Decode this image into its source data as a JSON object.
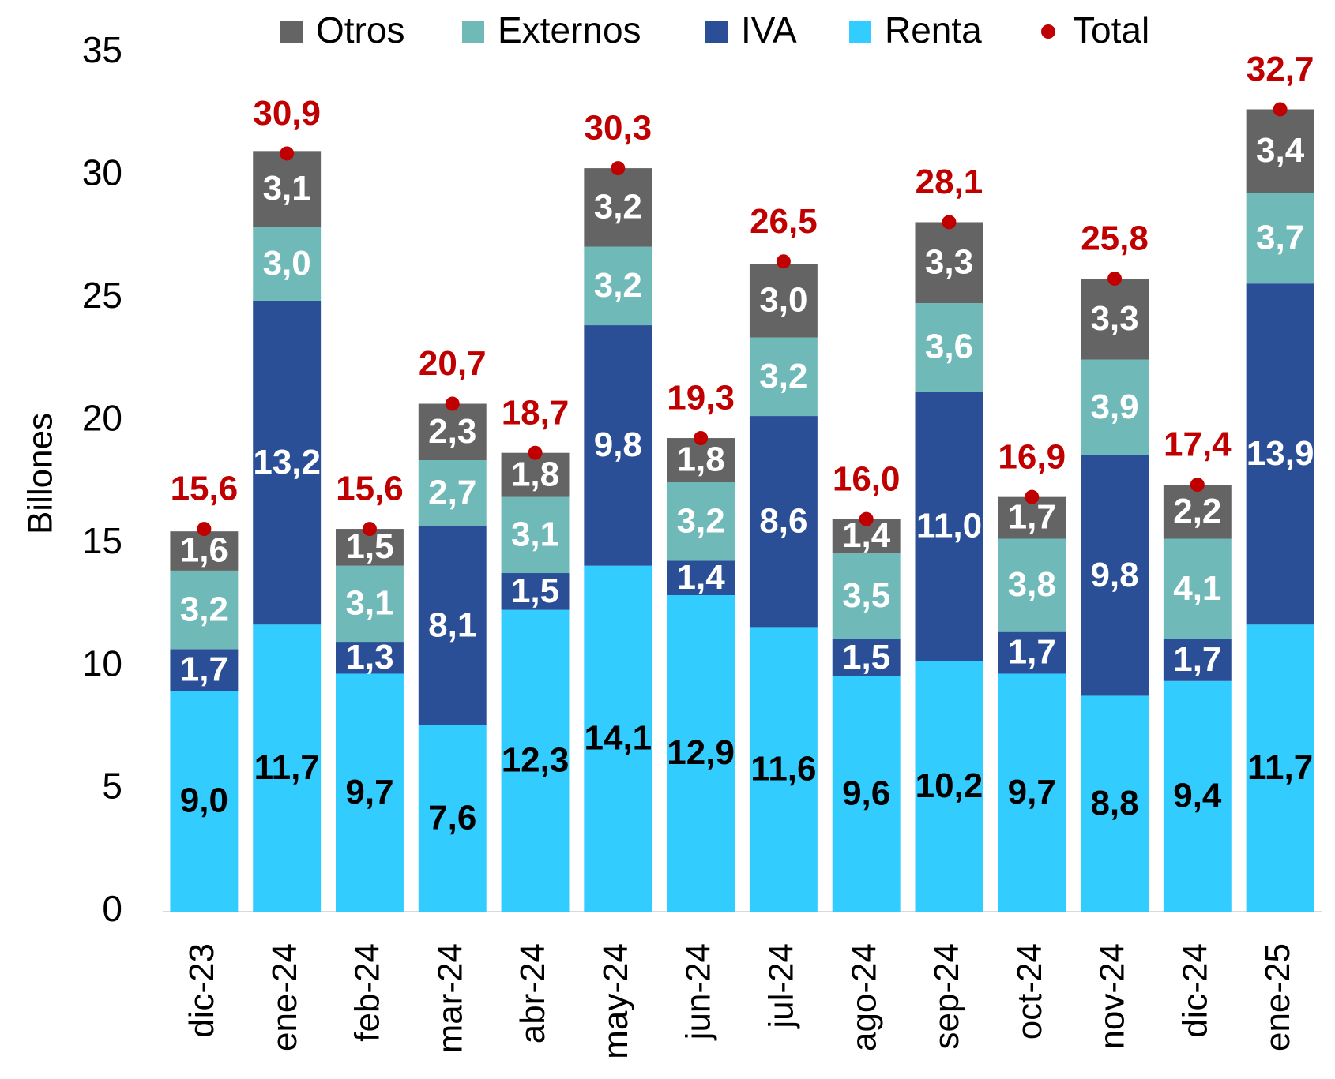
{
  "chart_data": {
    "type": "bar",
    "stacked": true,
    "y_label": "Billones",
    "categories": [
      "dic-23",
      "ene-24",
      "feb-24",
      "mar-24",
      "abr-24",
      "may-24",
      "jun-24",
      "jul-24",
      "ago-24",
      "sep-24",
      "oct-24",
      "nov-24",
      "dic-24",
      "ene-25"
    ],
    "series": [
      {
        "name": "Renta",
        "color": "#33ccff",
        "label_color": "#000000",
        "values": [
          9.0,
          11.7,
          9.7,
          7.6,
          12.3,
          14.1,
          12.9,
          11.6,
          9.6,
          10.2,
          9.7,
          8.8,
          9.4,
          11.7
        ],
        "value_labels": [
          "9,0",
          "11,7",
          "9,7",
          "7,6",
          "12,3",
          "14,1",
          "12,9",
          "11,6",
          "9,6",
          "10,2",
          "9,7",
          "8,8",
          "9,4",
          "11,7"
        ]
      },
      {
        "name": "IVA",
        "color": "#2a4f96",
        "label_color": "#ffffff",
        "values": [
          1.7,
          13.2,
          1.3,
          8.1,
          1.5,
          9.8,
          1.4,
          8.6,
          1.5,
          11.0,
          1.7,
          9.8,
          1.7,
          13.9
        ],
        "value_labels": [
          "1,7",
          "13,2",
          "1,3",
          "8,1",
          "1,5",
          "9,8",
          "1,4",
          "8,6",
          "1,5",
          "11,0",
          "1,7",
          "9,8",
          "1,7",
          "13,9"
        ]
      },
      {
        "name": "Externos",
        "color": "#6fbab8",
        "label_color": "#ffffff",
        "values": [
          3.2,
          3.0,
          3.1,
          2.7,
          3.1,
          3.2,
          3.2,
          3.2,
          3.5,
          3.6,
          3.8,
          3.9,
          4.1,
          3.7
        ],
        "value_labels": [
          "3,2",
          "3,0",
          "3,1",
          "2,7",
          "3,1",
          "3,2",
          "3,2",
          "3,2",
          "3,5",
          "3,6",
          "3,8",
          "3,9",
          "4,1",
          "3,7"
        ]
      },
      {
        "name": "Otros",
        "color": "#646464",
        "label_color": "#ffffff",
        "values": [
          1.6,
          3.1,
          1.5,
          2.3,
          1.8,
          3.2,
          1.8,
          3.0,
          1.4,
          3.3,
          1.7,
          3.3,
          2.2,
          3.4
        ],
        "value_labels": [
          "1,6",
          "3,1",
          "1,5",
          "2,3",
          "1,8",
          "3,2",
          "1,8",
          "3,0",
          "1,4",
          "3,3",
          "1,7",
          "3,3",
          "2,2",
          "3,4"
        ]
      },
      {
        "name": "Total",
        "color": "#c00000",
        "label_color": "#c00000",
        "marker": "dot",
        "values": [
          15.6,
          30.9,
          15.6,
          20.7,
          18.7,
          30.3,
          19.3,
          26.5,
          16.0,
          28.1,
          16.9,
          25.8,
          17.4,
          32.7
        ],
        "value_labels": [
          "15,6",
          "30,9",
          "15,6",
          "20,7",
          "18,7",
          "30,3",
          "19,3",
          "26,5",
          "16,0",
          "28,1",
          "16,9",
          "25,8",
          "17,4",
          "32,7"
        ]
      }
    ],
    "legend_order": [
      "Otros",
      "Externos",
      "IVA",
      "Renta",
      "Total"
    ],
    "ylim": [
      0,
      35
    ],
    "yticks": [
      0,
      5,
      10,
      15,
      20,
      25,
      30,
      35
    ],
    "grid": false
  }
}
